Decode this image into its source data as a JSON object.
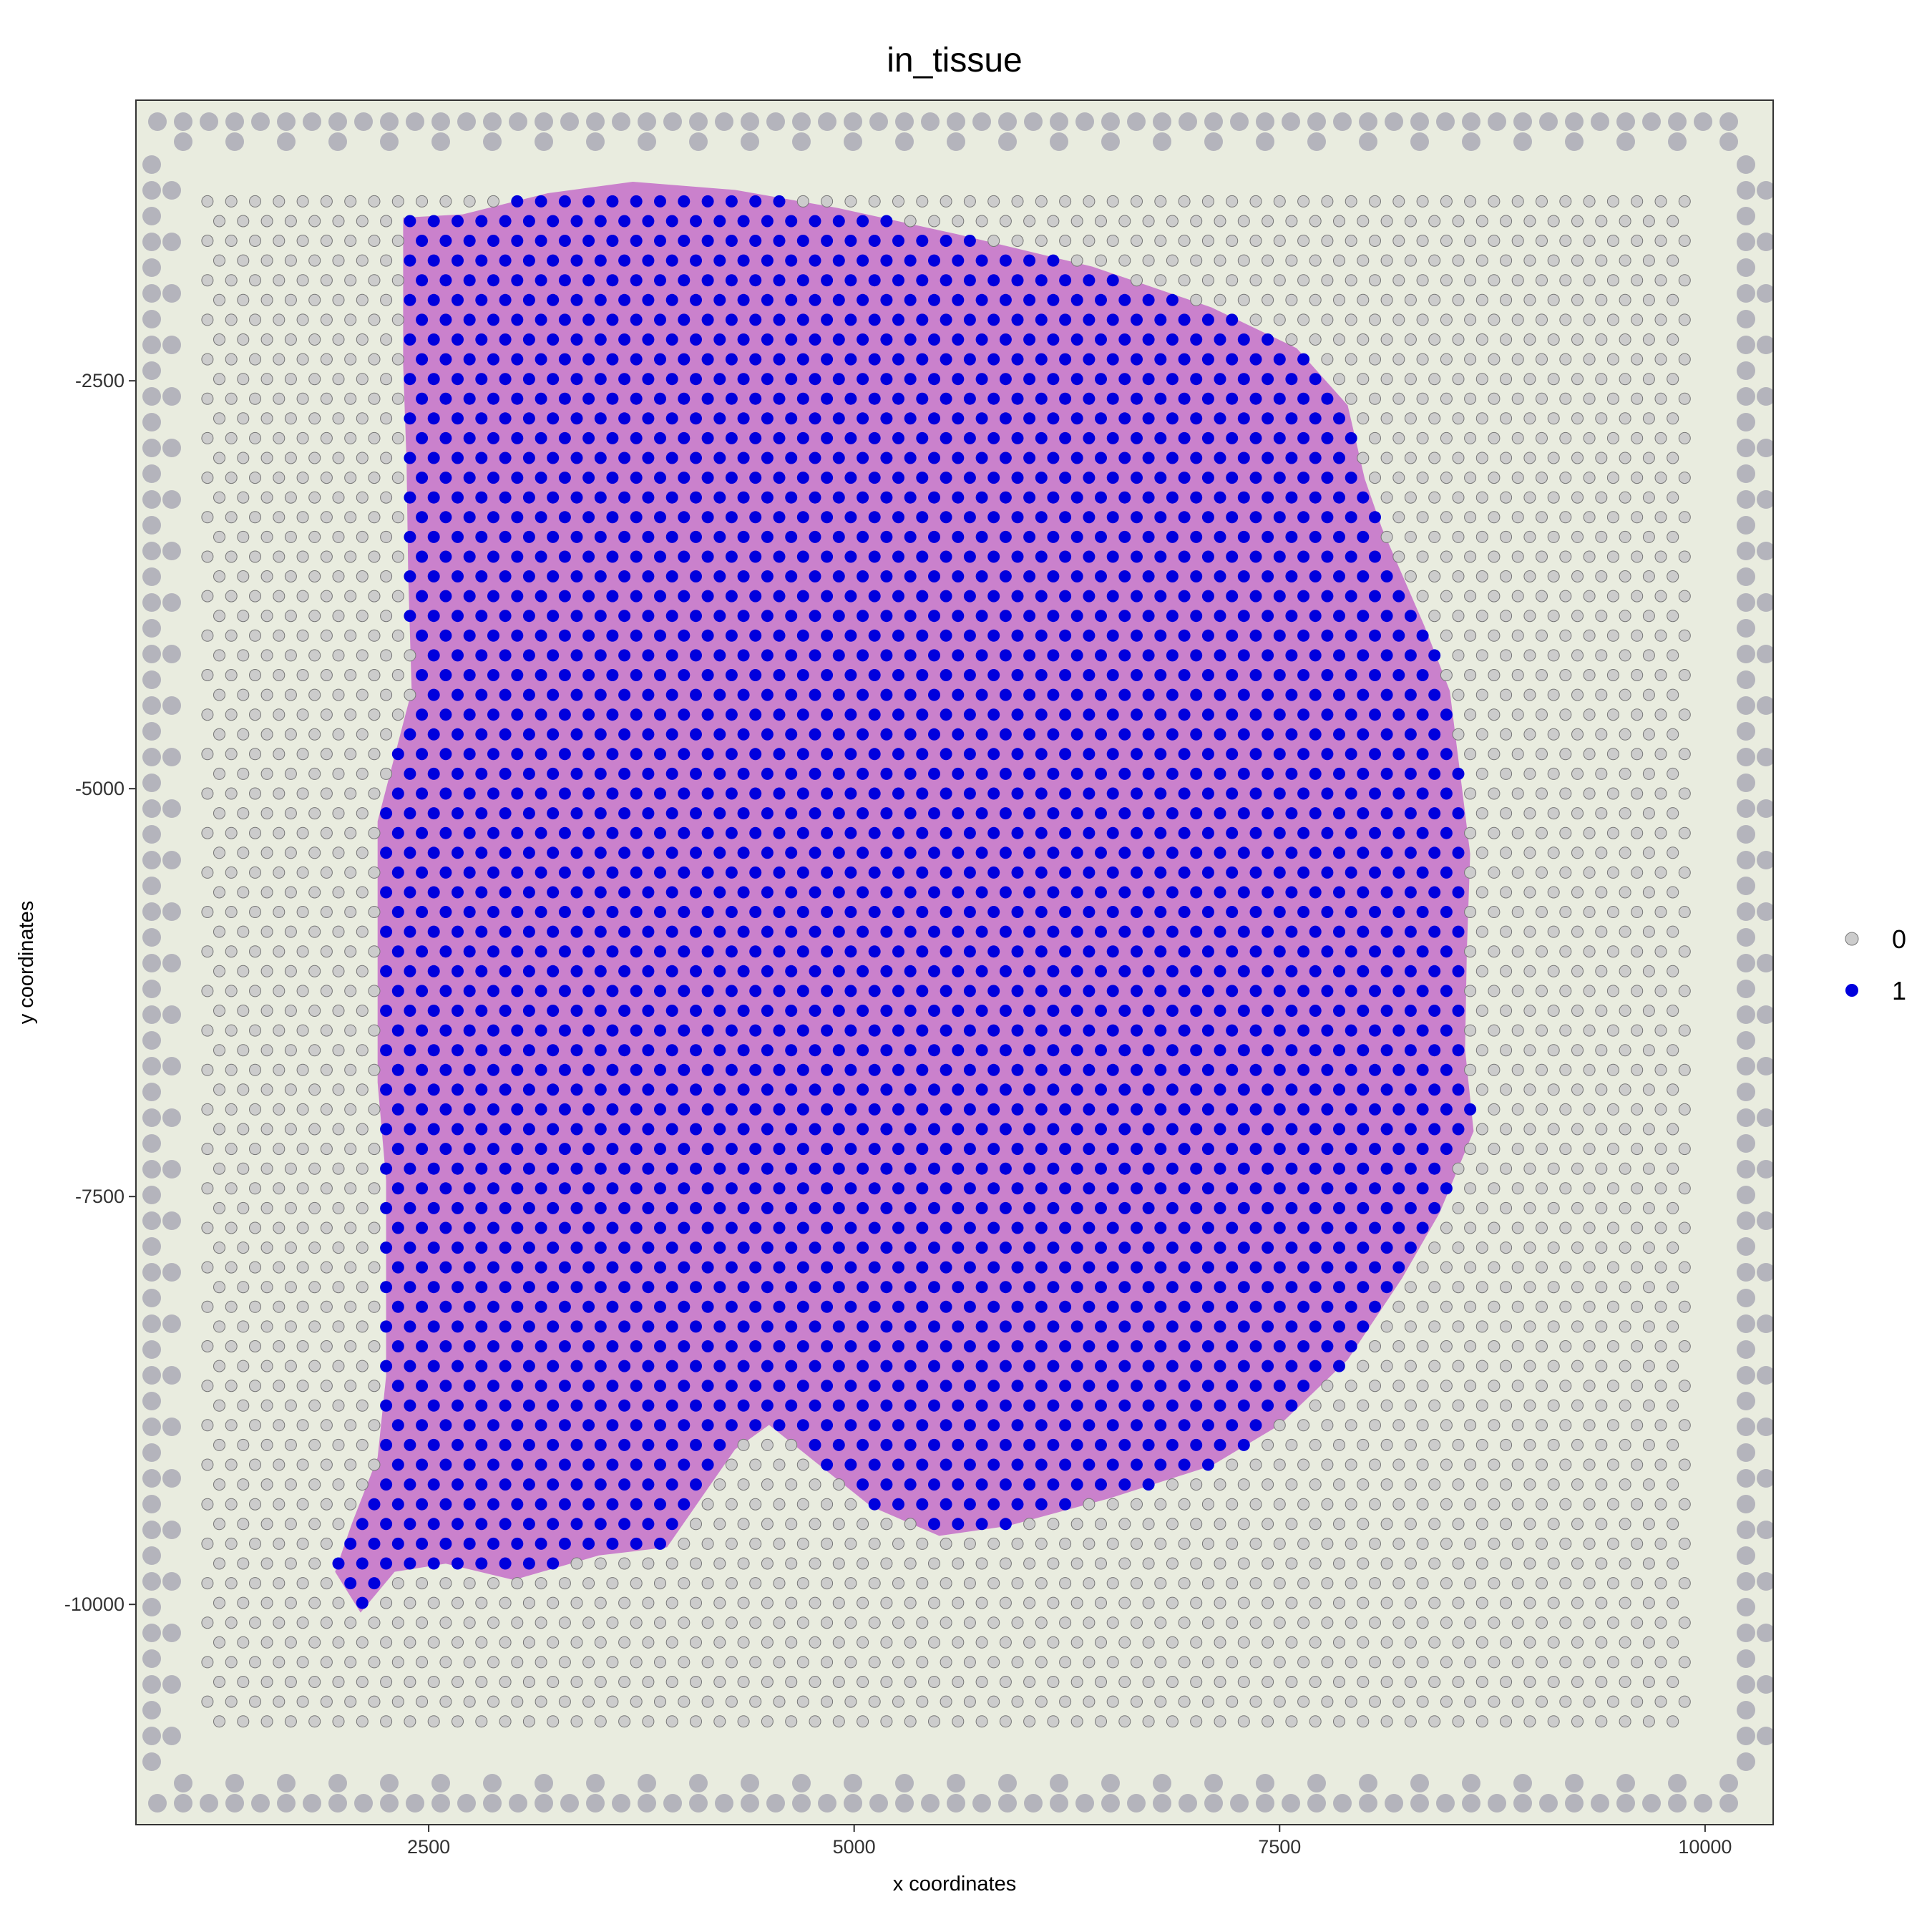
{
  "chart_data": {
    "type": "scatter",
    "title": "in_tissue",
    "xlabel": "x coordinates",
    "ylabel": "y coordinates",
    "xlim": [
      780,
      10400
    ],
    "ylim": [
      -11350,
      -780
    ],
    "x_ticks": [
      2500,
      5000,
      7500,
      10000
    ],
    "x_tick_labels": [
      "2500",
      "5000",
      "7500",
      "10000"
    ],
    "y_ticks": [
      -2500,
      -5000,
      -7500,
      -10000
    ],
    "y_tick_labels": [
      "-2500",
      "-5000",
      "-7500",
      "-10000"
    ],
    "grid": false,
    "legend_position": "right",
    "background": "H&E stained tissue image with fiducial border spots",
    "series": [
      {
        "name": "0",
        "color": "#cccccc",
        "description": "spots outside tissue, on capture-area hex grid"
      },
      {
        "name": "1",
        "color": "#0000dd",
        "description": "spots inside tissue, on capture-area hex grid"
      }
    ],
    "spot_grid": {
      "x_range": [
        1200,
        9900
      ],
      "y_range": [
        -10750,
        -1400
      ],
      "spacing_x": 140,
      "row_spacing_y": 121
    },
    "tissue_outline": [
      [
        2350,
        -1500
      ],
      [
        2700,
        -1480
      ],
      [
        3200,
        -1350
      ],
      [
        3700,
        -1280
      ],
      [
        4300,
        -1330
      ],
      [
        4900,
        -1440
      ],
      [
        5600,
        -1600
      ],
      [
        6400,
        -1800
      ],
      [
        7100,
        -2050
      ],
      [
        7600,
        -2300
      ],
      [
        7900,
        -2650
      ],
      [
        8000,
        -3100
      ],
      [
        8100,
        -3400
      ],
      [
        8350,
        -4000
      ],
      [
        8500,
        -4400
      ],
      [
        8560,
        -4900
      ],
      [
        8620,
        -5400
      ],
      [
        8600,
        -6000
      ],
      [
        8590,
        -6600
      ],
      [
        8640,
        -7100
      ],
      [
        8440,
        -7600
      ],
      [
        8220,
        -8000
      ],
      [
        7900,
        -8500
      ],
      [
        7500,
        -8900
      ],
      [
        7100,
        -9150
      ],
      [
        6500,
        -9350
      ],
      [
        5900,
        -9520
      ],
      [
        5500,
        -9580
      ],
      [
        5100,
        -9400
      ],
      [
        4800,
        -9150
      ],
      [
        4500,
        -8900
      ],
      [
        4300,
        -9050
      ],
      [
        4100,
        -9350
      ],
      [
        3900,
        -9650
      ],
      [
        3500,
        -9700
      ],
      [
        3000,
        -9850
      ],
      [
        2600,
        -9750
      ],
      [
        2300,
        -9800
      ],
      [
        2100,
        -10050
      ],
      [
        1950,
        -9800
      ],
      [
        2050,
        -9500
      ],
      [
        2200,
        -9100
      ],
      [
        2250,
        -8600
      ],
      [
        2250,
        -8000
      ],
      [
        2250,
        -7400
      ],
      [
        2200,
        -6800
      ],
      [
        2200,
        -6200
      ],
      [
        2200,
        -5600
      ],
      [
        2200,
        -5200
      ],
      [
        2300,
        -4800
      ],
      [
        2400,
        -4400
      ],
      [
        2380,
        -3700
      ],
      [
        2370,
        -3000
      ],
      [
        2350,
        -2400
      ],
      [
        2350,
        -1500
      ]
    ]
  }
}
